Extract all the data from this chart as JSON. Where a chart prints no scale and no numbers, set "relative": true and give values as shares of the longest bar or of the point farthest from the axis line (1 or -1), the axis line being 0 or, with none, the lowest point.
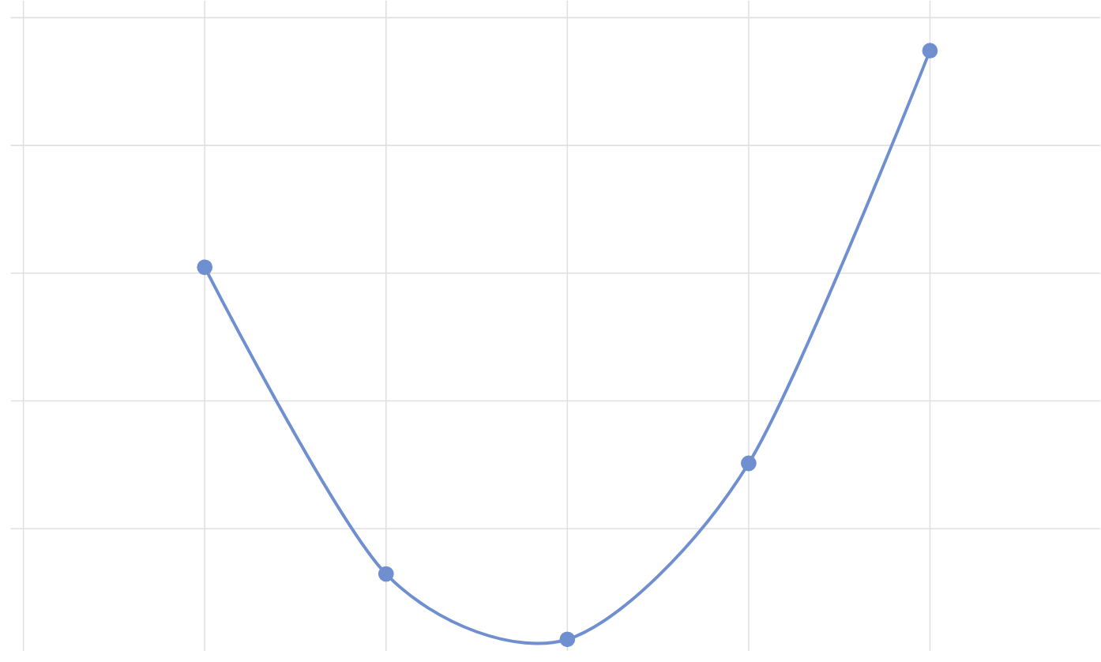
{
  "chart_data": {
    "type": "line",
    "relative": true,
    "categories": [
      null,
      null,
      null,
      null,
      null
    ],
    "values": [
      0.632,
      0.111,
      0,
      0.299,
      1
    ],
    "color": "#6f8fd0",
    "marker": "circle",
    "line_style": "solid",
    "grid": true
  }
}
